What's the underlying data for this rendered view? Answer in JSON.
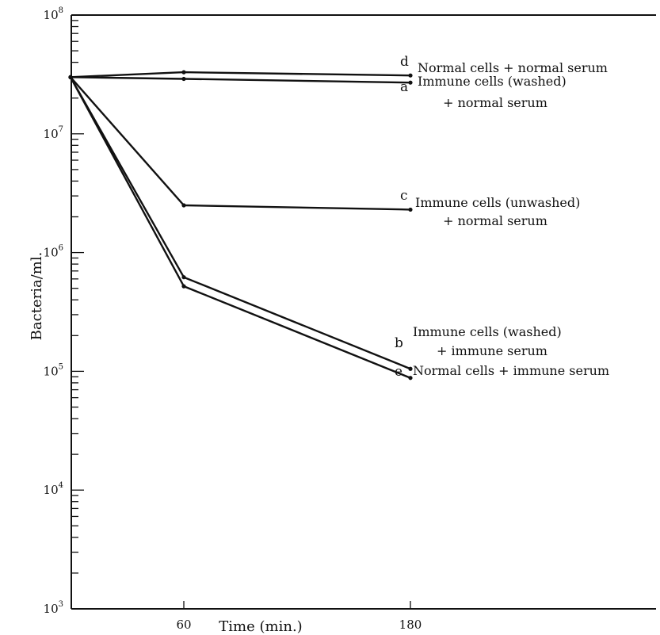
{
  "chart_data": {
    "type": "line",
    "y_scale": "log",
    "xlabel": "Time (min.)",
    "ylabel": "Bacteria/ml.",
    "xlim": [
      0,
      240
    ],
    "ylim": [
      1000,
      100000000
    ],
    "x_ticks": [
      {
        "value": 60,
        "label": "60"
      },
      {
        "value": 180,
        "label": "180"
      }
    ],
    "y_ticks": [
      {
        "value": 1000,
        "base": "10",
        "exp": "3"
      },
      {
        "value": 10000,
        "base": "10",
        "exp": "4"
      },
      {
        "value": 100000,
        "base": "10",
        "exp": "5"
      },
      {
        "value": 1000000,
        "base": "10",
        "exp": "6"
      },
      {
        "value": 10000000,
        "base": "10",
        "exp": "7"
      },
      {
        "value": 100000000,
        "base": "10",
        "exp": "8"
      }
    ],
    "grid": false,
    "series": [
      {
        "name": "d",
        "label_lines": [
          "Normal cells + normal serum"
        ],
        "x": [
          0,
          60,
          180
        ],
        "y": [
          30000000,
          33000000,
          31000000
        ]
      },
      {
        "name": "a",
        "label_lines": [
          "Immune cells (washed)",
          "+ normal serum"
        ],
        "x": [
          0,
          60,
          180
        ],
        "y": [
          30000000,
          29000000,
          27000000
        ]
      },
      {
        "name": "c",
        "label_lines": [
          "Immune cells (unwashed)",
          "+ normal serum"
        ],
        "x": [
          0,
          60,
          180
        ],
        "y": [
          30000000,
          2500000,
          2300000
        ]
      },
      {
        "name": "b",
        "label_lines": [
          "Immune cells (washed)",
          "+ immune serum"
        ],
        "x": [
          0,
          60,
          180
        ],
        "y": [
          30000000,
          620000,
          105000
        ]
      },
      {
        "name": "e",
        "label_lines": [
          "Normal cells + immune serum"
        ],
        "x": [
          0,
          60,
          180
        ],
        "y": [
          30000000,
          520000,
          88000
        ]
      }
    ]
  }
}
